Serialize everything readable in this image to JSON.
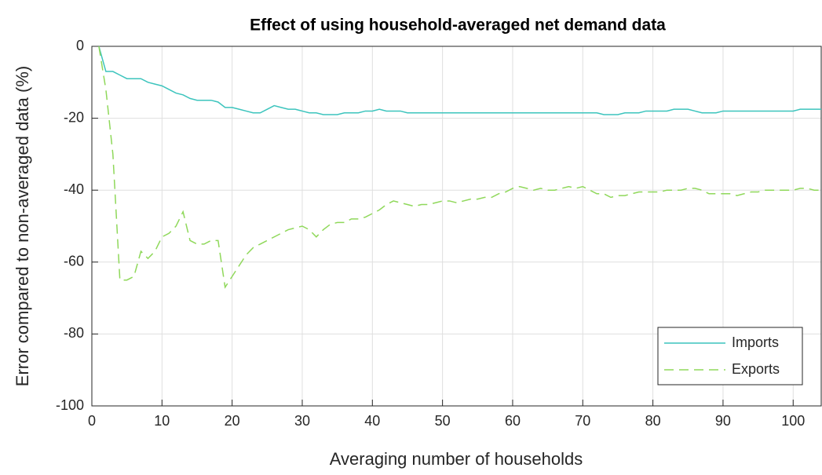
{
  "chart_data": {
    "type": "line",
    "title": "Effect of using household-averaged net demand data",
    "xlabel": "Averaging number of households",
    "ylabel": "Error compared to non-averaged data (%)",
    "x": [
      1,
      2,
      3,
      4,
      5,
      6,
      7,
      8,
      9,
      10,
      11,
      12,
      13,
      14,
      15,
      16,
      17,
      18,
      19,
      20,
      21,
      22,
      23,
      24,
      25,
      26,
      27,
      28,
      29,
      30,
      31,
      32,
      33,
      34,
      35,
      36,
      37,
      38,
      39,
      40,
      41,
      42,
      43,
      44,
      45,
      46,
      47,
      48,
      49,
      50,
      51,
      52,
      53,
      54,
      55,
      56,
      57,
      58,
      59,
      60,
      61,
      62,
      63,
      64,
      65,
      66,
      67,
      68,
      69,
      70,
      71,
      72,
      73,
      74,
      75,
      76,
      77,
      78,
      79,
      80,
      81,
      82,
      83,
      84,
      85,
      86,
      87,
      88,
      89,
      90,
      91,
      92,
      93,
      94,
      95,
      96,
      97,
      98,
      99,
      100,
      101,
      102,
      103,
      104
    ],
    "series": [
      {
        "name": "Imports",
        "color": "#3cc4bd",
        "dash": false,
        "values": [
          0,
          -7,
          -7,
          -8,
          -9,
          -9,
          -9,
          -10,
          -10.5,
          -11,
          -12,
          -13,
          -13.5,
          -14.5,
          -15,
          -15,
          -15,
          -15.5,
          -17,
          -17,
          -17.5,
          -18,
          -18.5,
          -18.5,
          -17.5,
          -16.5,
          -17,
          -17.5,
          -17.5,
          -18,
          -18.5,
          -18.5,
          -19,
          -19,
          -19,
          -18.5,
          -18.5,
          -18.5,
          -18,
          -18,
          -17.5,
          -18,
          -18,
          -18,
          -18.5,
          -18.5,
          -18.5,
          -18.5,
          -18.5,
          -18.5,
          -18.5,
          -18.5,
          -18.5,
          -18.5,
          -18.5,
          -18.5,
          -18.5,
          -18.5,
          -18.5,
          -18.5,
          -18.5,
          -18.5,
          -18.5,
          -18.5,
          -18.5,
          -18.5,
          -18.5,
          -18.5,
          -18.5,
          -18.5,
          -18.5,
          -18.5,
          -19,
          -19,
          -19,
          -18.5,
          -18.5,
          -18.5,
          -18,
          -18,
          -18,
          -18,
          -17.5,
          -17.5,
          -17.5,
          -18,
          -18.5,
          -18.5,
          -18.5,
          -18,
          -18,
          -18,
          -18,
          -18,
          -18,
          -18,
          -18,
          -18,
          -18,
          -18,
          -17.5,
          -17.5,
          -17.5,
          -17.5
        ]
      },
      {
        "name": "Exports",
        "color": "#8fd85a",
        "dash": true,
        "values": [
          0,
          -12,
          -30,
          -65,
          -65,
          -64,
          -57,
          -59,
          -57,
          -53,
          -52,
          -50,
          -46,
          -54,
          -55,
          -55,
          -54,
          -54,
          -67,
          -64,
          -61,
          -58,
          -56,
          -55,
          -54,
          -53,
          -52,
          -51,
          -50.5,
          -50,
          -51,
          -53,
          -51,
          -49.5,
          -49,
          -49,
          -48,
          -48,
          -47.5,
          -46.5,
          -45.5,
          -44,
          -43,
          -43.5,
          -44,
          -44.5,
          -44,
          -44,
          -43.5,
          -43,
          -43,
          -43.5,
          -43,
          -42.5,
          -42.5,
          -42,
          -42,
          -41,
          -40.5,
          -39.5,
          -39,
          -39.5,
          -40,
          -39.5,
          -40,
          -40,
          -39.5,
          -39,
          -39.5,
          -39,
          -40,
          -41,
          -41,
          -42,
          -41.5,
          -41.5,
          -41,
          -40.5,
          -40.5,
          -40.5,
          -40.5,
          -40,
          -40,
          -40,
          -39.5,
          -39.5,
          -40,
          -41,
          -41,
          -41,
          -41,
          -41.5,
          -41,
          -40.5,
          -40.5,
          -40,
          -40,
          -40,
          -40,
          -40,
          -39.5,
          -39.5,
          -40,
          -40
        ]
      }
    ],
    "xlim": [
      0,
      104
    ],
    "ylim": [
      -100,
      0
    ],
    "xticks": [
      0,
      10,
      20,
      30,
      40,
      50,
      60,
      70,
      80,
      90,
      100
    ],
    "yticks": [
      -100,
      -80,
      -60,
      -40,
      -20,
      0
    ],
    "grid": true,
    "legend": "southeast"
  }
}
